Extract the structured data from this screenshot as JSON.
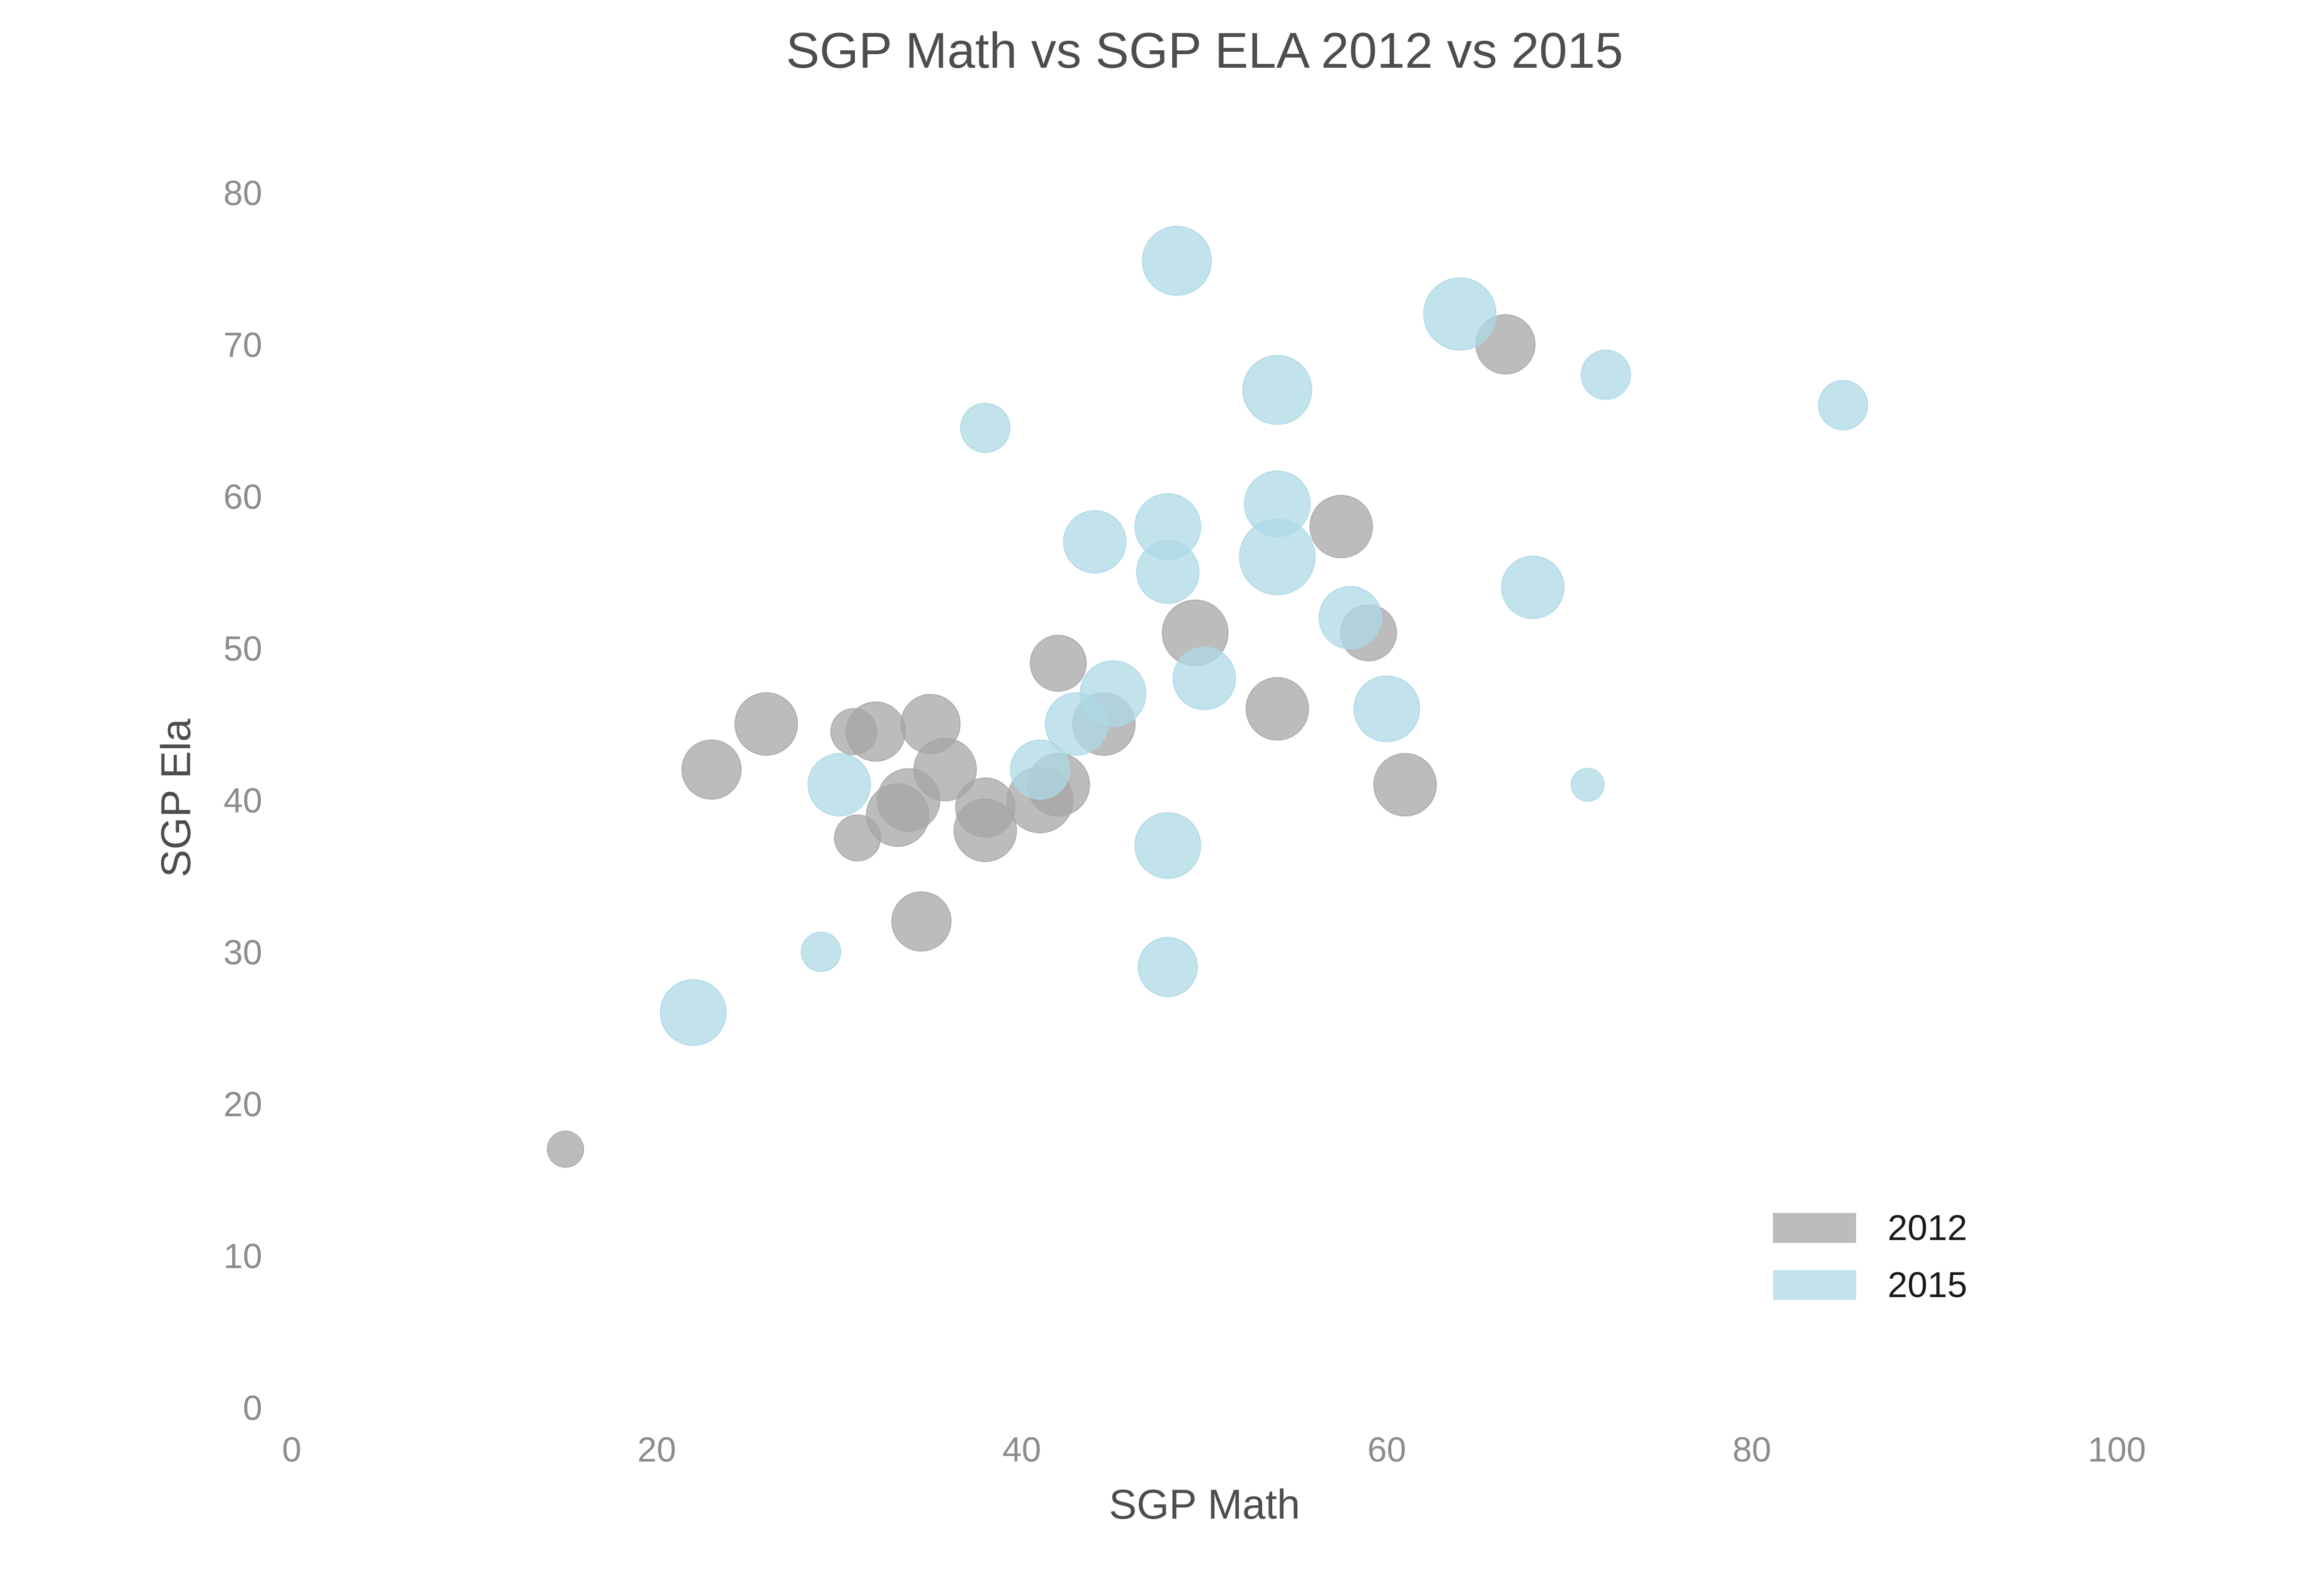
{
  "chart_data": {
    "type": "scatter",
    "title": "SGP Math vs SGP ELA 2012 vs 2015",
    "xlabel": "SGP Math",
    "ylabel": "SGP Ela",
    "xlim": [
      0,
      100
    ],
    "ylim": [
      0,
      80
    ],
    "xticks": [
      0,
      20,
      40,
      60,
      80,
      100
    ],
    "yticks": [
      0,
      10,
      20,
      30,
      40,
      50,
      60,
      70,
      80
    ],
    "grid": false,
    "legend_position": "lower-right",
    "series": [
      {
        "name": "2012",
        "color": "#a6a6a6",
        "points": [
          {
            "x": 15,
            "y": 17,
            "size": 55
          },
          {
            "x": 23,
            "y": 42,
            "size": 90
          },
          {
            "x": 26,
            "y": 45,
            "size": 95
          },
          {
            "x": 30.8,
            "y": 44.5,
            "size": 70
          },
          {
            "x": 31,
            "y": 37.5,
            "size": 70
          },
          {
            "x": 32,
            "y": 44.5,
            "size": 90
          },
          {
            "x": 33.2,
            "y": 39,
            "size": 95
          },
          {
            "x": 33.8,
            "y": 40,
            "size": 95
          },
          {
            "x": 34.5,
            "y": 32,
            "size": 90
          },
          {
            "x": 35,
            "y": 45,
            "size": 90
          },
          {
            "x": 35.8,
            "y": 42,
            "size": 95
          },
          {
            "x": 38,
            "y": 38,
            "size": 95
          },
          {
            "x": 38,
            "y": 39.5,
            "size": 90
          },
          {
            "x": 41,
            "y": 40,
            "size": 100
          },
          {
            "x": 42,
            "y": 41,
            "size": 95
          },
          {
            "x": 42,
            "y": 49,
            "size": 85
          },
          {
            "x": 44.5,
            "y": 45,
            "size": 95
          },
          {
            "x": 49.5,
            "y": 51,
            "size": 100
          },
          {
            "x": 54,
            "y": 46,
            "size": 95
          },
          {
            "x": 57.5,
            "y": 58,
            "size": 95
          },
          {
            "x": 59,
            "y": 51,
            "size": 85
          },
          {
            "x": 61,
            "y": 41,
            "size": 95
          },
          {
            "x": 66.5,
            "y": 70,
            "size": 90
          }
        ]
      },
      {
        "name": "2015",
        "color": "#add8e6",
        "points": [
          {
            "x": 22,
            "y": 26,
            "size": 100
          },
          {
            "x": 29,
            "y": 30,
            "size": 60
          },
          {
            "x": 30,
            "y": 41,
            "size": 95
          },
          {
            "x": 38,
            "y": 64.5,
            "size": 75
          },
          {
            "x": 41,
            "y": 42,
            "size": 90
          },
          {
            "x": 43,
            "y": 45,
            "size": 95
          },
          {
            "x": 44,
            "y": 57,
            "size": 95
          },
          {
            "x": 45,
            "y": 47,
            "size": 100
          },
          {
            "x": 48,
            "y": 29,
            "size": 90
          },
          {
            "x": 48,
            "y": 37,
            "size": 100
          },
          {
            "x": 48,
            "y": 55,
            "size": 95
          },
          {
            "x": 48,
            "y": 58,
            "size": 100
          },
          {
            "x": 48.5,
            "y": 75.5,
            "size": 105
          },
          {
            "x": 50,
            "y": 48,
            "size": 95
          },
          {
            "x": 54,
            "y": 56,
            "size": 115
          },
          {
            "x": 54,
            "y": 59.5,
            "size": 100
          },
          {
            "x": 54,
            "y": 67,
            "size": 105
          },
          {
            "x": 58,
            "y": 52,
            "size": 95
          },
          {
            "x": 60,
            "y": 46,
            "size": 100
          },
          {
            "x": 64,
            "y": 72,
            "size": 110
          },
          {
            "x": 68,
            "y": 54,
            "size": 95
          },
          {
            "x": 71,
            "y": 41,
            "size": 50
          },
          {
            "x": 72,
            "y": 68,
            "size": 75
          },
          {
            "x": 85,
            "y": 66,
            "size": 75
          }
        ]
      }
    ]
  }
}
